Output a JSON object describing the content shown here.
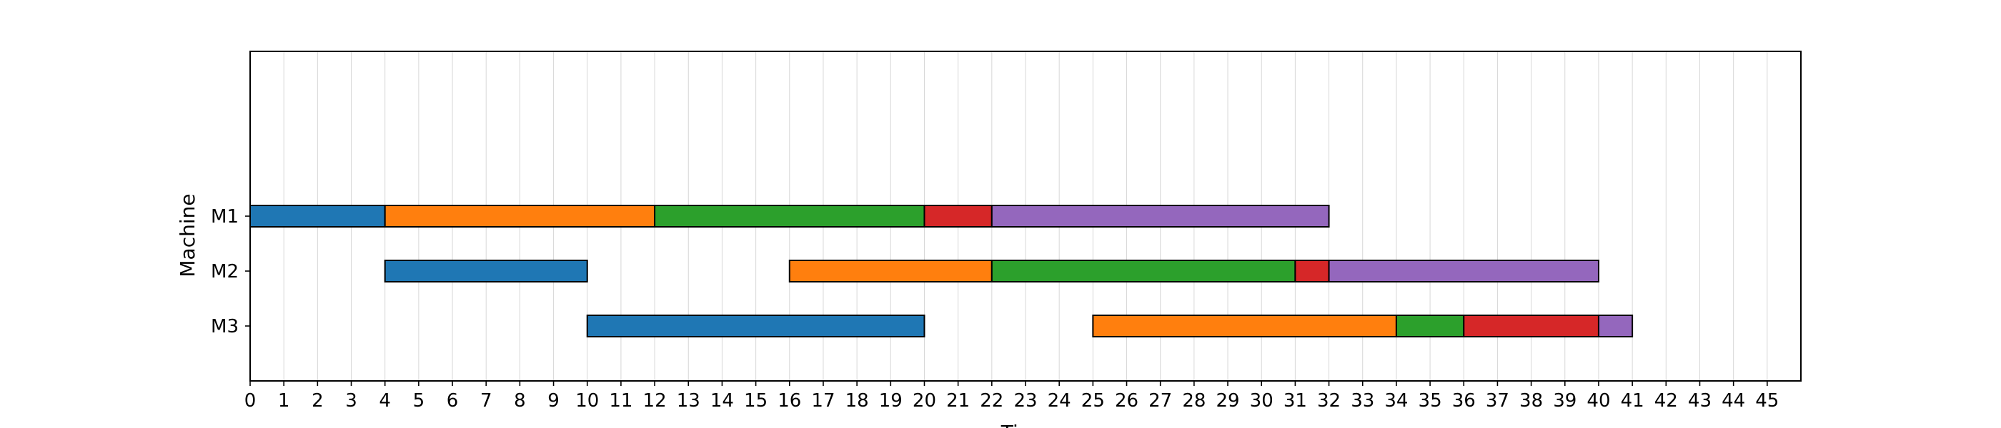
{
  "chart_data": {
    "type": "gantt",
    "title": "",
    "xlabel": "Time",
    "ylabel": "Machine",
    "xlim": [
      0,
      46
    ],
    "x_ticks": [
      0,
      1,
      2,
      3,
      4,
      5,
      6,
      7,
      8,
      9,
      10,
      11,
      12,
      13,
      14,
      15,
      16,
      17,
      18,
      19,
      20,
      21,
      22,
      23,
      24,
      25,
      26,
      27,
      28,
      29,
      30,
      31,
      32,
      33,
      34,
      35,
      36,
      37,
      38,
      39,
      40,
      41,
      42,
      43,
      44,
      45
    ],
    "machines": [
      "M1",
      "M2",
      "M3"
    ],
    "grid": "vertical",
    "job_colors": [
      "#1f77b4",
      "#ff7f0e",
      "#2ca02c",
      "#d62728",
      "#9467bd"
    ],
    "tasks": [
      {
        "machine": "M1",
        "job": 0,
        "start": 0,
        "end": 4
      },
      {
        "machine": "M1",
        "job": 1,
        "start": 4,
        "end": 12
      },
      {
        "machine": "M1",
        "job": 2,
        "start": 12,
        "end": 20
      },
      {
        "machine": "M1",
        "job": 3,
        "start": 20,
        "end": 22
      },
      {
        "machine": "M1",
        "job": 4,
        "start": 22,
        "end": 32
      },
      {
        "machine": "M2",
        "job": 0,
        "start": 4,
        "end": 10
      },
      {
        "machine": "M2",
        "job": 1,
        "start": 16,
        "end": 22
      },
      {
        "machine": "M2",
        "job": 2,
        "start": 22,
        "end": 31
      },
      {
        "machine": "M2",
        "job": 3,
        "start": 31,
        "end": 32
      },
      {
        "machine": "M2",
        "job": 4,
        "start": 32,
        "end": 40
      },
      {
        "machine": "M3",
        "job": 0,
        "start": 10,
        "end": 20
      },
      {
        "machine": "M3",
        "job": 1,
        "start": 25,
        "end": 34
      },
      {
        "machine": "M3",
        "job": 2,
        "start": 34,
        "end": 36
      },
      {
        "machine": "M3",
        "job": 3,
        "start": 36,
        "end": 40
      },
      {
        "machine": "M3",
        "job": 4,
        "start": 40,
        "end": 41
      }
    ]
  }
}
